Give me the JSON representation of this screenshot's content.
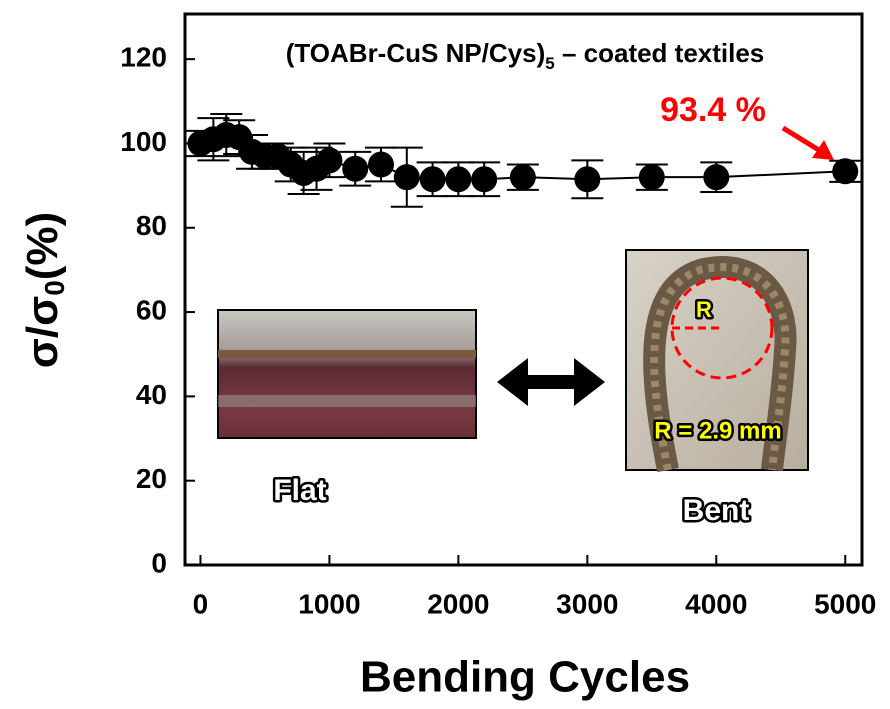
{
  "chart_data": {
    "type": "scatter",
    "title_parts": [
      "(TOABr-CuS NP/Cys)",
      "5",
      " – coated textiles"
    ],
    "x_label": "Bending Cycles",
    "y_label_parts": [
      "σ/σ",
      "0",
      "(%)"
    ],
    "x": [
      0,
      100,
      200,
      300,
      400,
      500,
      600,
      700,
      800,
      900,
      1000,
      1200,
      1400,
      1600,
      1800,
      2000,
      2200,
      2500,
      3000,
      3500,
      4000,
      5000
    ],
    "values": [
      100,
      101,
      102,
      101.5,
      98,
      97,
      97,
      95,
      93,
      94,
      96,
      94,
      95,
      92,
      91.5,
      91.5,
      91.5,
      92,
      91.5,
      92,
      92,
      93.4
    ],
    "errors": [
      3,
      5,
      5,
      4,
      4,
      3,
      3,
      4,
      5,
      5,
      4,
      4,
      4,
      7,
      4,
      4,
      4,
      3,
      4.5,
      3,
      3.5,
      2.5
    ],
    "color": "#000000",
    "xlim": [
      -120,
      5130
    ],
    "ylim": [
      0,
      130
    ],
    "xticks": [
      0,
      1000,
      2000,
      3000,
      4000,
      5000
    ],
    "yticks": [
      0,
      20,
      40,
      60,
      80,
      100,
      120
    ],
    "annotation": "93.4 %",
    "annotation_color": "#ff0000",
    "inset_labels": {
      "flat": "Flat",
      "bent": "Bent",
      "radius": "R",
      "radius_value": "R = 2.9 mm"
    }
  }
}
